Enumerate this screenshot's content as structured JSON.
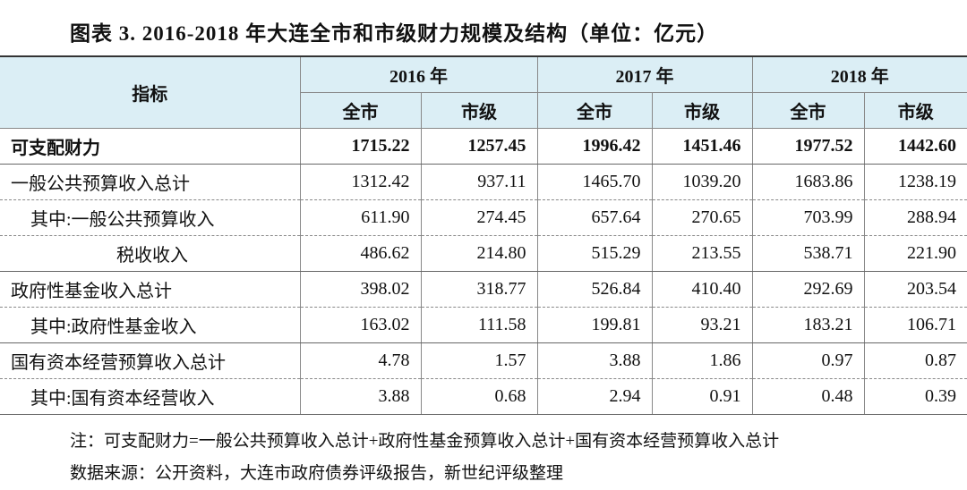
{
  "title": "图表 3. 2016-2018 年大连全市和市级财力规模及结构（单位：亿元）",
  "table": {
    "header": [
      "指标",
      "2016 年",
      "2017 年",
      "2018 年"
    ],
    "subheader": [
      "全市",
      "市级",
      "全市",
      "市级",
      "全市",
      "市级"
    ],
    "rows": [
      [
        "可支配财力",
        "1715.22",
        "1257.45",
        "1996.42",
        "1451.46",
        "1977.52",
        "1442.60"
      ],
      [
        "一般公共预算收入总计",
        "1312.42",
        "937.11",
        "1465.70",
        "1039.20",
        "1683.86",
        "1238.19"
      ],
      [
        "其中:一般公共预算收入",
        "611.90",
        "274.45",
        "657.64",
        "270.65",
        "703.99",
        "288.94"
      ],
      [
        "税收收入",
        "486.62",
        "214.80",
        "515.29",
        "213.55",
        "538.71",
        "221.90"
      ],
      [
        "政府性基金收入总计",
        "398.02",
        "318.77",
        "526.84",
        "410.40",
        "292.69",
        "203.54"
      ],
      [
        "其中:政府性基金收入",
        "163.02",
        "111.58",
        "199.81",
        "93.21",
        "183.21",
        "106.71"
      ],
      [
        "国有资本经营预算收入总计",
        "4.78",
        "1.57",
        "3.88",
        "1.86",
        "0.97",
        "0.87"
      ],
      [
        "其中:国有资本经营收入",
        "3.88",
        "0.68",
        "2.94",
        "0.91",
        "0.48",
        "0.39"
      ]
    ]
  },
  "notes": [
    "注：可支配财力=一般公共预算收入总计+政府性基金预算收入总计+国有资本经营预算收入总计",
    "数据来源：公开资料，大连市政府债券评级报告，新世纪评级整理"
  ]
}
